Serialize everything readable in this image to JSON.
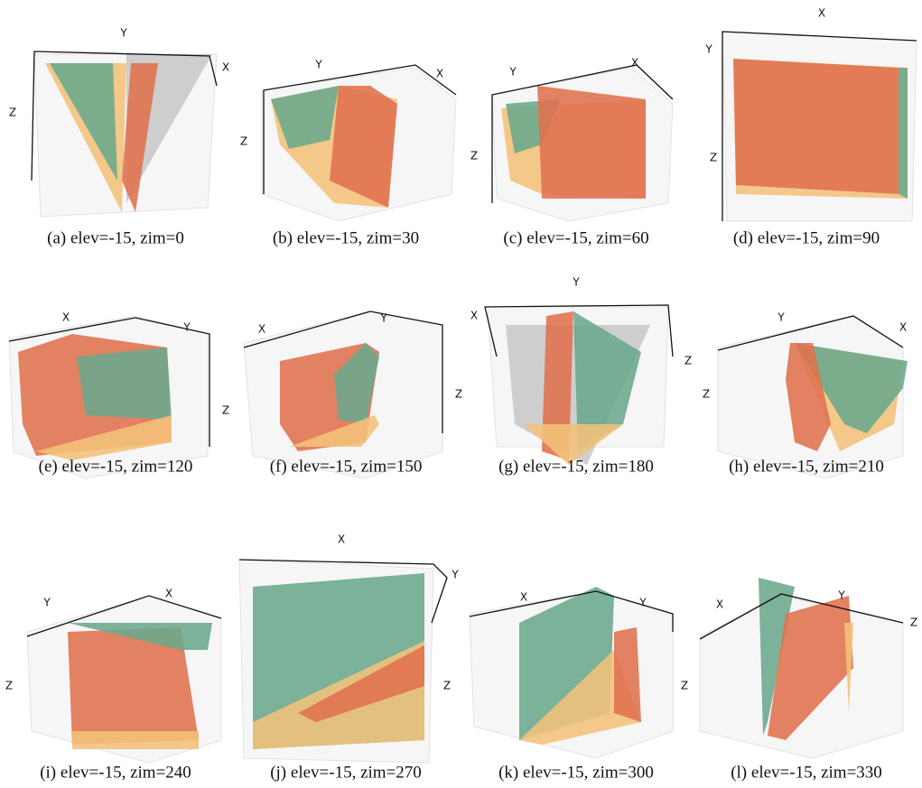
{
  "panels": [
    {
      "caption": "(a) elev=-15, zim=0",
      "axis_labels": {
        "x": "X",
        "y": "Y",
        "z": "Z"
      }
    },
    {
      "caption": "(b) elev=-15, zim=30",
      "axis_labels": {
        "x": "X",
        "y": "Y",
        "z": "Z"
      }
    },
    {
      "caption": "(c) elev=-15, zim=60",
      "axis_labels": {
        "x": "X",
        "y": "Y",
        "z": "Z"
      }
    },
    {
      "caption": "(d) elev=-15, zim=90",
      "axis_labels": {
        "x": "X",
        "y": "Y",
        "z": "Z"
      }
    },
    {
      "caption": "(e) elev=-15, zim=120",
      "axis_labels": {
        "x": "X",
        "y": "Y",
        "z": "Z"
      }
    },
    {
      "caption": "(f) elev=-15, zim=150",
      "axis_labels": {
        "x": "X",
        "y": "Y",
        "z": "Z"
      }
    },
    {
      "caption": "(g) elev=-15, zim=180",
      "axis_labels": {
        "x": "X",
        "y": "Y",
        "z": "Z"
      }
    },
    {
      "caption": "(h) elev=-15, zim=210",
      "axis_labels": {
        "x": "X",
        "y": "Y",
        "z": "Z"
      }
    },
    {
      "caption": "(i) elev=-15, zim=240",
      "axis_labels": {
        "x": "X",
        "y": "Y",
        "z": "Z"
      }
    },
    {
      "caption": "(j) elev=-15, zim=270",
      "axis_labels": {
        "x": "X",
        "y": "Y",
        "z": "Z"
      }
    },
    {
      "caption": "(k) elev=-15, zim=300",
      "axis_labels": {
        "x": "X",
        "y": "Y",
        "z": "Z"
      }
    },
    {
      "caption": "(l) elev=-15, zim=330",
      "axis_labels": {
        "x": "X",
        "y": "Y",
        "z": "Z"
      }
    }
  ]
}
